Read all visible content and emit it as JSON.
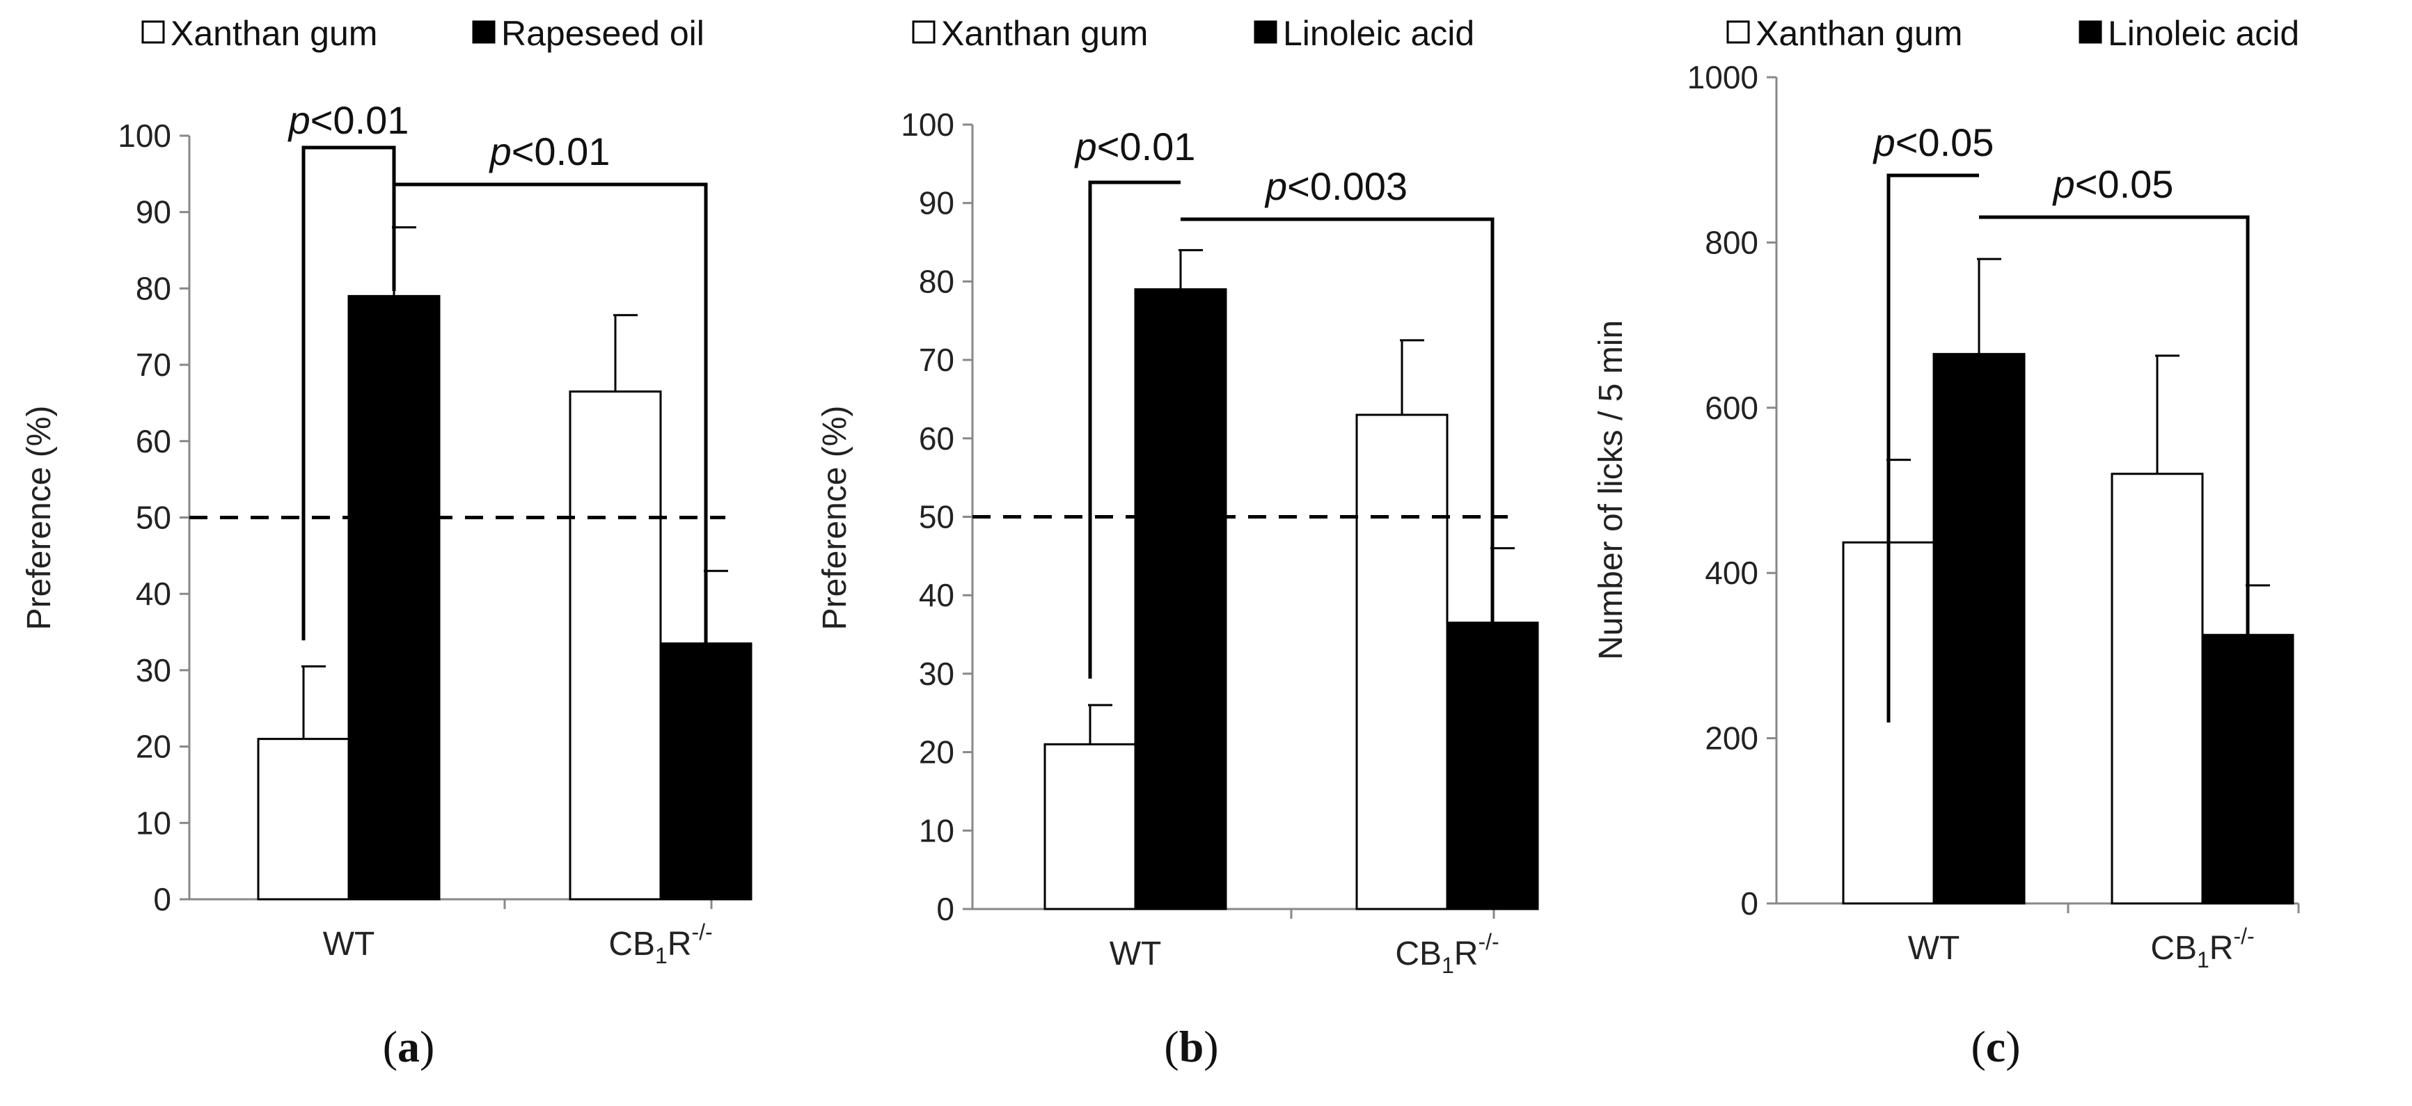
{
  "chart_data": [
    {
      "type": "bar",
      "panel_label": "(a)",
      "categories": [
        "WT",
        "CB₁R⁻/⁻"
      ],
      "category_parts": [
        {
          "main": "WT",
          "sub": "",
          "sup": ""
        },
        {
          "main": "CB",
          "sub": "1",
          "tail": "R",
          "sup": "-/-"
        }
      ],
      "series": [
        {
          "name": "Xanthan gum",
          "values": [
            21,
            66.5
          ],
          "errors": [
            9.5,
            10
          ],
          "fill": "#ffffff"
        },
        {
          "name": "Rapeseed oil",
          "values": [
            79,
            33.5
          ],
          "errors": [
            9,
            9.5
          ],
          "fill": "#000000"
        }
      ],
      "ylabel": "Preference (%)",
      "ylim": [
        0,
        100
      ],
      "yticks": [
        0,
        10,
        20,
        30,
        40,
        50,
        60,
        70,
        80,
        90,
        100
      ],
      "reference_line": 50,
      "legend_placement": "top",
      "significance": [
        {
          "text_p": "p",
          "text_rest": "<0.01",
          "from": [
            0,
            0
          ],
          "to": [
            0,
            1
          ]
        },
        {
          "text_p": "p",
          "text_rest": "<0.01",
          "from": [
            0,
            1
          ],
          "to": [
            1,
            1
          ]
        }
      ]
    },
    {
      "type": "bar",
      "panel_label": "(b)",
      "categories": [
        "WT",
        "CB₁R⁻/⁻"
      ],
      "category_parts": [
        {
          "main": "WT",
          "sub": "",
          "sup": ""
        },
        {
          "main": "CB",
          "sub": "1",
          "tail": "R",
          "sup": "-/-"
        }
      ],
      "series": [
        {
          "name": "Xanthan gum",
          "values": [
            21,
            63
          ],
          "errors": [
            5,
            9.5
          ],
          "fill": "#ffffff"
        },
        {
          "name": "Linoleic acid",
          "values": [
            79,
            36.5
          ],
          "errors": [
            5,
            9.5
          ],
          "fill": "#000000"
        }
      ],
      "ylabel": "Preference (%)",
      "ylim": [
        0,
        100
      ],
      "yticks": [
        0,
        10,
        20,
        30,
        40,
        50,
        60,
        70,
        80,
        90,
        100
      ],
      "reference_line": 50,
      "legend_placement": "top",
      "significance": [
        {
          "text_p": "p",
          "text_rest": "<0.01",
          "from": [
            0,
            0
          ],
          "to": [
            0,
            1
          ]
        },
        {
          "text_p": "p",
          "text_rest": "<0.003",
          "from": [
            0,
            1
          ],
          "to": [
            1,
            1
          ]
        }
      ]
    },
    {
      "type": "bar",
      "panel_label": "(c)",
      "categories": [
        "WT",
        "CB₁R⁻/⁻"
      ],
      "category_parts": [
        {
          "main": "WT",
          "sub": "",
          "sup": ""
        },
        {
          "main": "CB",
          "sub": "1",
          "tail": "R",
          "sup": "-/-"
        }
      ],
      "series": [
        {
          "name": "Xanthan gum",
          "values": [
            437,
            520
          ],
          "errors": [
            100,
            143
          ],
          "fill": "#ffffff"
        },
        {
          "name": "Linoleic acid",
          "values": [
            665,
            325
          ],
          "errors": [
            115,
            60
          ],
          "fill": "#000000"
        }
      ],
      "ylabel": "Number of licks / 5 min",
      "ylim": [
        0,
        1000
      ],
      "yticks": [
        0,
        200,
        400,
        600,
        800,
        1000
      ],
      "reference_line": null,
      "legend_placement": "top",
      "significance": [
        {
          "text_p": "p",
          "text_rest": "<0.05",
          "from": [
            0,
            0
          ],
          "to": [
            0,
            1
          ]
        },
        {
          "text_p": "p",
          "text_rest": "<0.05",
          "from": [
            0,
            1
          ],
          "to": [
            1,
            1
          ]
        }
      ]
    }
  ]
}
